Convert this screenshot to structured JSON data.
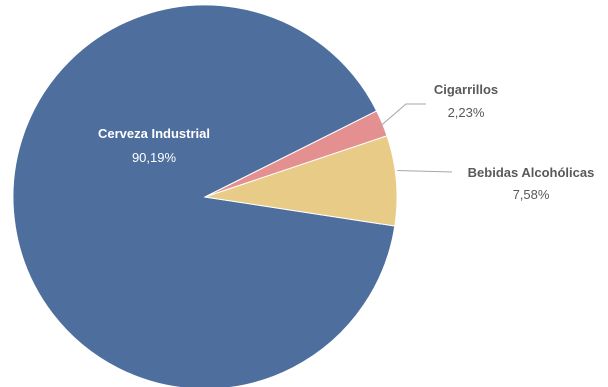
{
  "chart_data": {
    "type": "pie",
    "title": "",
    "legend": "none",
    "series": [
      {
        "name": "Cerveza Industrial",
        "value": 90.19,
        "label": "90,19%",
        "color": "#4e6f9e"
      },
      {
        "name": "Cigarrillos",
        "value": 2.23,
        "label": "2,23%",
        "color": "#e48f90"
      },
      {
        "name": "Bebidas Alcohólicas",
        "value": 7.58,
        "label": "7,58%",
        "color": "#e7cb87"
      }
    ]
  }
}
